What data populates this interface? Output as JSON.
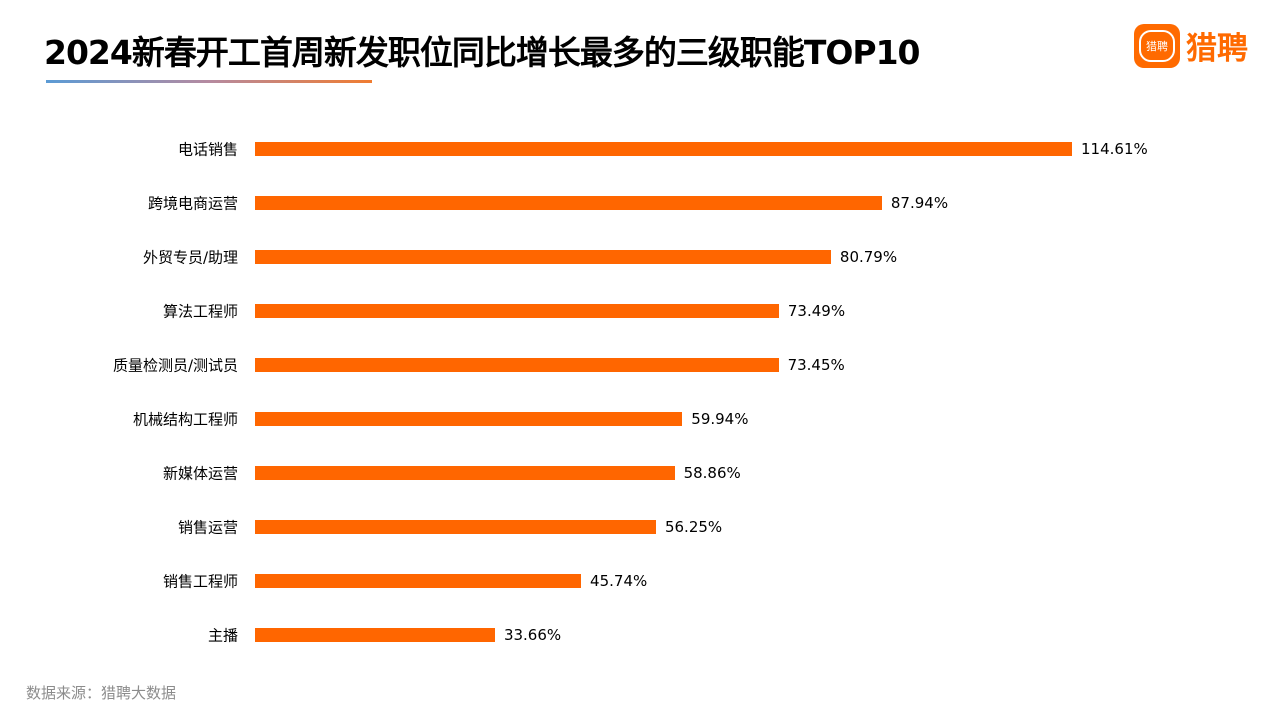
{
  "title": "2024新春开工首周新发职位同比增长最多的三级职能TOP10",
  "logo": {
    "badge_text": "猎聘",
    "text": "猎聘"
  },
  "source": "数据来源：猎聘大数据",
  "colors": {
    "bar": "#ff6600",
    "logo": "#ff6a00"
  },
  "chart_data": {
    "type": "bar",
    "orientation": "horizontal",
    "categories": [
      "电话销售",
      "跨境电商运营",
      "外贸专员/助理",
      "算法工程师",
      "质量检测员/测试员",
      "机械结构工程师",
      "新媒体运营",
      "销售运营",
      "销售工程师",
      "主播"
    ],
    "values": [
      114.61,
      87.94,
      80.79,
      73.49,
      73.45,
      59.94,
      58.86,
      56.25,
      45.74,
      33.66
    ],
    "labels": [
      "114.61%",
      "87.94%",
      "80.79%",
      "73.49%",
      "73.45%",
      "59.94%",
      "58.86%",
      "56.25%",
      "45.74%",
      "33.66%"
    ],
    "title": "2024新春开工首周新发职位同比增长最多的三级职能TOP10",
    "grid": false,
    "legend": "none"
  }
}
